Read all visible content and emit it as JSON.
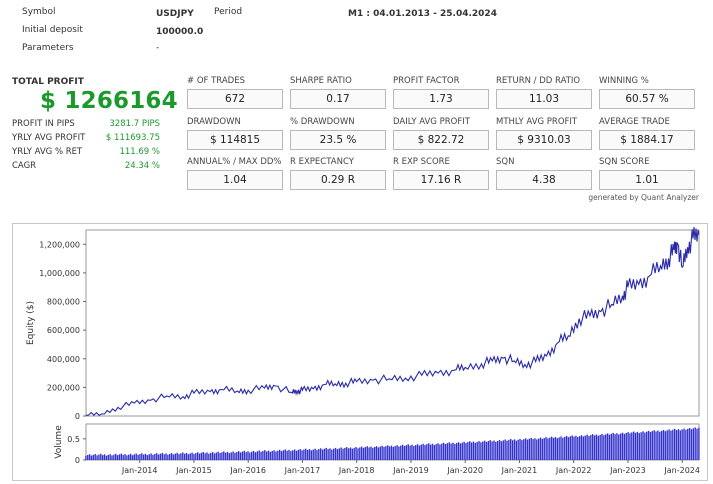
{
  "header": {
    "symbol_label": "Symbol",
    "symbol_value": "USDJPY",
    "period_label": "Period",
    "period_value": "M1 : 04.01.2013 - 25.04.2024",
    "deposit_label": "Initial deposit",
    "deposit_value": "100000.0",
    "parameters_label": "Parameters",
    "parameters_value": "-"
  },
  "summary": {
    "total_profit_label": "TOTAL PROFIT",
    "total_profit_value": "$ 1266164",
    "rows": [
      {
        "label": "PROFIT IN PIPS",
        "value": "3281.7 PIPS"
      },
      {
        "label": "YRLY AVG PROFIT",
        "value": "$ 111693.75"
      },
      {
        "label": "YRLY AVG % RET",
        "value": "111.69 %"
      },
      {
        "label": "CAGR",
        "value": "24.34 %"
      }
    ]
  },
  "stats": [
    {
      "label": "# OF TRADES",
      "value": "672"
    },
    {
      "label": "SHARPE RATIO",
      "value": "0.17"
    },
    {
      "label": "PROFIT FACTOR",
      "value": "1.73"
    },
    {
      "label": "RETURN / DD RATIO",
      "value": "11.03"
    },
    {
      "label": "WINNING %",
      "value": "60.57 %"
    },
    {
      "label": "DRAWDOWN",
      "value": "$ 114815"
    },
    {
      "label": "% DRAWDOWN",
      "value": "23.5 %"
    },
    {
      "label": "DAILY AVG PROFIT",
      "value": "$ 822.72"
    },
    {
      "label": "MTHLY AVG PROFIT",
      "value": "$ 9310.03"
    },
    {
      "label": "AVERAGE TRADE",
      "value": "$ 1884.17"
    },
    {
      "label": "ANNUAL% / MAX DD%",
      "value": "1.04"
    },
    {
      "label": "R EXPECTANCY",
      "value": "0.29 R"
    },
    {
      "label": "R EXP SCORE",
      "value": "17.16 R"
    },
    {
      "label": "SQN",
      "value": "4.38"
    },
    {
      "label": "SQN SCORE",
      "value": "1.01"
    }
  ],
  "generated_by": "generated by Quant Analyzer",
  "colors": {
    "accent_green": "#1a9a2a",
    "line": "#2a2aa8",
    "volume": "#3333cc"
  },
  "chart_data": [
    {
      "type": "line",
      "ylabel": "Equity ($)",
      "ylim": [
        0,
        1300000
      ],
      "yticks": [
        0,
        200000,
        400000,
        600000,
        800000,
        1000000,
        1200000
      ],
      "ytick_labels": [
        "0",
        "200,000",
        "400,000",
        "600,000",
        "800,000",
        "1,000,000",
        "1,200,000"
      ],
      "x": [
        2013.01,
        2013.3,
        2013.6,
        2013.9,
        2014.2,
        2014.5,
        2014.8,
        2015.0,
        2015.3,
        2015.5,
        2015.8,
        2016.0,
        2016.3,
        2016.5,
        2016.8,
        2016.9,
        2017.0,
        2017.2,
        2017.4,
        2017.6,
        2017.8,
        2018.0,
        2018.3,
        2018.6,
        2018.9,
        2019.2,
        2019.5,
        2019.8,
        2020.0,
        2020.3,
        2020.5,
        2020.7,
        2020.9,
        2021.1,
        2021.3,
        2021.5,
        2021.7,
        2021.9,
        2022.1,
        2022.3,
        2022.5,
        2022.7,
        2022.9,
        2023.0,
        2023.2,
        2023.4,
        2023.6,
        2023.75,
        2023.85,
        2023.92,
        2024.0,
        2024.1,
        2024.2,
        2024.31
      ],
      "series": [
        {
          "values": [
            5000,
            15000,
            60000,
            90000,
            110000,
            140000,
            135000,
            160000,
            170000,
            185000,
            175000,
            180000,
            195000,
            210000,
            165000,
            175000,
            180000,
            190000,
            220000,
            225000,
            230000,
            240000,
            250000,
            260000,
            265000,
            285000,
            300000,
            320000,
            340000,
            365000,
            385000,
            405000,
            385000,
            360000,
            380000,
            420000,
            510000,
            560000,
            680000,
            700000,
            730000,
            780000,
            840000,
            900000,
            920000,
            980000,
            1050000,
            1100000,
            1160000,
            1200000,
            1040000,
            1180000,
            1240000,
            1266164
          ]
        }
      ]
    },
    {
      "type": "bar",
      "ylabel": "Volume",
      "ylim": [
        0,
        0.85
      ],
      "yticks": [
        0,
        0.5
      ],
      "ytick_labels": [
        "0",
        "0.5"
      ],
      "x_range": [
        2013.01,
        2024.31
      ],
      "series": [
        {
          "name": "",
          "start_value": 0.12,
          "end_value": 0.75
        }
      ],
      "xtick_labels": [
        "Jan-2014",
        "Jan-2015",
        "Jan-2016",
        "Jan-2017",
        "Jan-2018",
        "Jan-2019",
        "Jan-2020",
        "Jan-2021",
        "Jan-2022",
        "Jan-2023",
        "Jan-2024"
      ],
      "xtick_values": [
        2014,
        2015,
        2016,
        2017,
        2018,
        2019,
        2020,
        2021,
        2022,
        2023,
        2024
      ]
    }
  ]
}
